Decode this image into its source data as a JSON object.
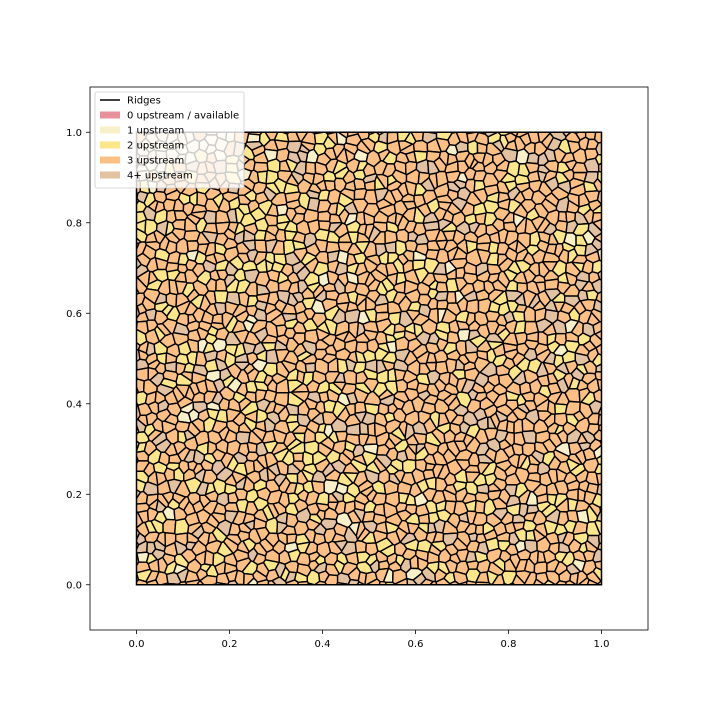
{
  "chart_data": {
    "type": "heatmap",
    "title": "",
    "xlabel": "",
    "ylabel": "",
    "xlim": [
      -0.1,
      1.1
    ],
    "ylim": [
      -0.1,
      1.1
    ],
    "x_ticks": [
      0.0,
      0.2,
      0.4,
      0.6,
      0.8,
      1.0
    ],
    "y_ticks": [
      0.0,
      0.2,
      0.4,
      0.6,
      0.8,
      1.0
    ],
    "x_tick_labels": [
      "0.0",
      "0.2",
      "0.4",
      "0.6",
      "0.8",
      "1.0"
    ],
    "y_tick_labels": [
      "0.0",
      "0.2",
      "0.4",
      "0.6",
      "0.8",
      "1.0"
    ],
    "grid": false,
    "legend_position": "top-left",
    "domain": {
      "x": [
        0.0,
        1.0
      ],
      "y": [
        0.0,
        1.0
      ]
    },
    "legend": [
      {
        "label": "Ridges",
        "kind": "line",
        "color": "#000000"
      },
      {
        "label": "0 upstream / available",
        "kind": "patch",
        "color": "#e8909a"
      },
      {
        "label": "1 upstream",
        "kind": "patch",
        "color": "#f8f0c8"
      },
      {
        "label": "2 upstream",
        "kind": "patch",
        "color": "#fce68a"
      },
      {
        "label": "3 upstream",
        "kind": "patch",
        "color": "#fcbf84"
      },
      {
        "label": "4+ upstream",
        "kind": "patch",
        "color": "#e3c2a2"
      }
    ],
    "cell_color_weights": {
      "1 upstream": 0.03,
      "2 upstream": 0.22,
      "3 upstream": 0.6,
      "4+ upstream": 0.15
    },
    "upper_left_corner_category": "1 upstream"
  }
}
